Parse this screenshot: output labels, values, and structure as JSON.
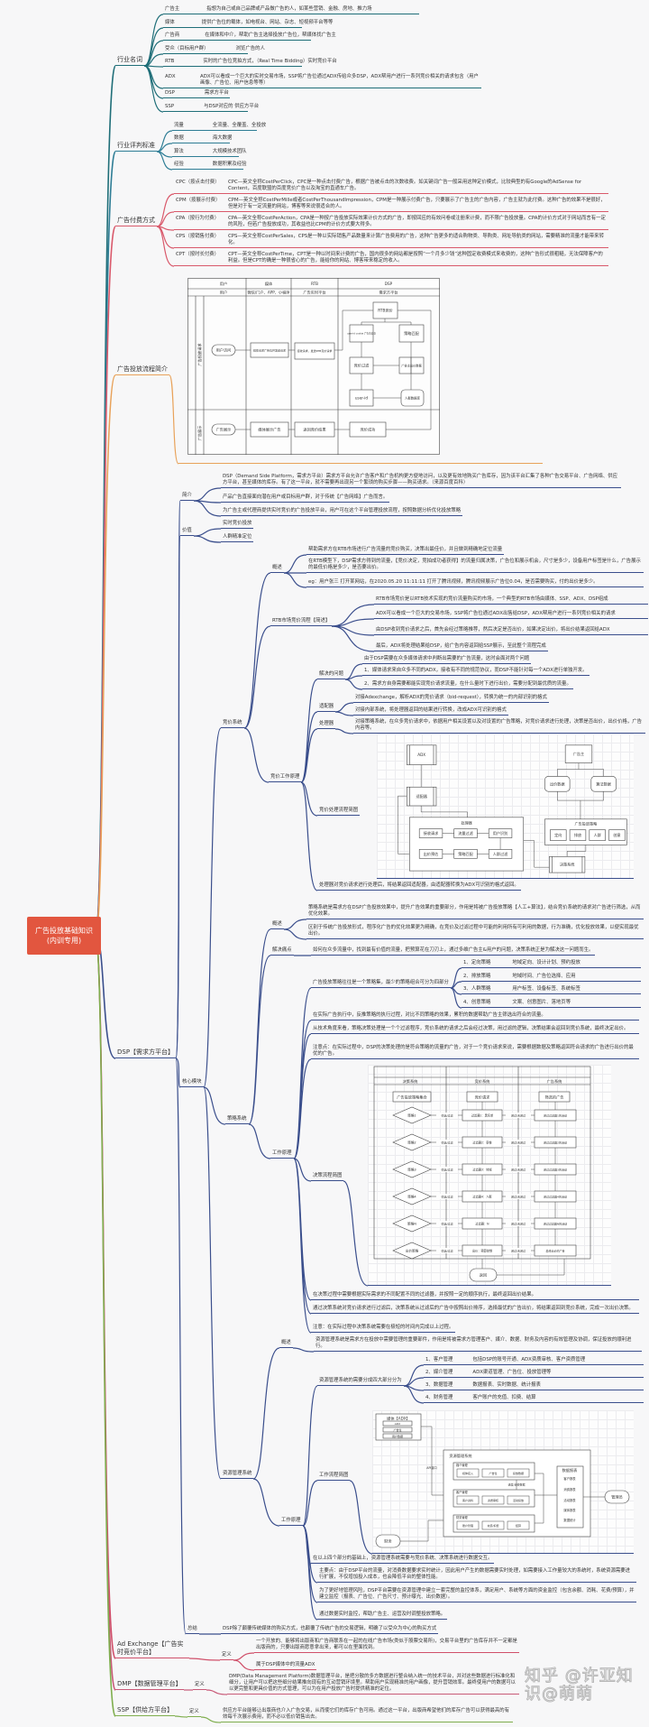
{
  "center": "广告投放基础知识\n(内训专用)",
  "colors": {
    "center": "#e2563f",
    "terms": "#1f6e78",
    "standards": "#2e7d95",
    "pay": "#d9596b",
    "flow": "#e8a25a",
    "dsp": "#3a4e8c",
    "adx": "#d0506a",
    "dmp": "#c85a78",
    "ssp": "#7fae4e"
  },
  "terms": {
    "label": "行业名词",
    "items": [
      {
        "k": "广告主",
        "v": "指想为自己或自己品牌或产品做广告的人，如某些营销、金融、房地、推力场"
      },
      {
        "k": "媒体",
        "v": "提供广告位的载体，如电视台、网站、杂志、短视频平台等等"
      },
      {
        "k": "广告商",
        "v": "在媒体和中介，帮助广告主选择投放广告位，帮媒体找广告主"
      },
      {
        "k": "受众（目标用户群）",
        "v": "浏览广告的人"
      },
      {
        "k": "RTB",
        "v": "实时的广告位竞拍方式，（Real Time Bidding）实时竞价平台"
      },
      {
        "k": "ADX",
        "v": "ADX可以看成一个巨大的实时交易市场，SSP将广告位通过ADX传给众多DSP，ADX帮用户进行一系列竞价相关的请求包含（用户画像、广告位、用户信息等等）"
      },
      {
        "k": "DSP",
        "v": "需求方平台"
      },
      {
        "k": "SSP",
        "v": "与DSP对应的 供应方平台"
      }
    ]
  },
  "standards": {
    "label": "行业评判标准",
    "items": [
      {
        "k": "流量",
        "v": "全流量、全覆盖、全投放"
      },
      {
        "k": "数据",
        "v": "海大数据"
      },
      {
        "k": "算法",
        "v": "大规模技术团队"
      },
      {
        "k": "经验",
        "v": "数据积累及经验"
      }
    ]
  },
  "pay": {
    "label": "广告付费方式",
    "items": [
      {
        "k": "CPC（按点击付费）",
        "v": "CPC—英文全称CostPerClick，CPC是一种点击付费广告，根据广告被点击的次数收费。如关键词广告一般采用这种定价模式，比较典型的有Google的AdSense for Content，百度联盟的百度竞价广告以及淘宝的直通车广告。"
      },
      {
        "k": "CPM（按展示付费）",
        "v": "CPM—英文全称CostPerMille或者CostPerThousandImpression，CPM是一种展示付费广告，只要展示了广告主的广告内容，广告主就为此付费。这种广告的效果不是很好，但是对于有一定流量的网站，博客等来说很适合的人。"
      },
      {
        "k": "CPA（按行为付费）",
        "v": "CPA—英文全称CostPerAction，CPA是一种按广告投放实际效果计价方式的广告，即按回应的有效问卷或注册来计费，而不限广告投放量。CPA的计价方式对于网站而言有一定的风险，但若广告投放成功，其收益也比CPM的计价方式要大得多。"
      },
      {
        "k": "CPS（按销售付费）",
        "v": "CPS—英文全称CostPerSales，CPS是一种以实际销售产品数量来计算广告费用的广告，这种广告更多的适合购物类、导购类、网址导航类的网站，需要精准的流量才能带来转化。"
      },
      {
        "k": "CPT（按时长付费）",
        "v": "CPT—英文全称CostPerTime，CPT是一种以时间来计费的广告，国内很多的网站都是按照“一个月多少钱”这种固定收费模式来收费的，这种广告形式很粗糙，无法保障客户的利益。但是CPT的确是一种很省心的广告，能给你的网站、博客带来稳定的收入。"
      }
    ]
  },
  "flow": {
    "label": "广告投放流程简介",
    "headers": [
      "用户",
      "媒体",
      "RTB",
      "DSP"
    ],
    "subheaders": [
      "用户",
      "微信/门户、APP、小程序",
      "广告实时平台",
      "需求方平台"
    ],
    "lanes": [
      "广告投放请求",
      "广告展示"
    ],
    "boxes": {
      "user": "用户访问",
      "media": "媒体请求广告位并发送请求",
      "rtb": "接收请求，发送RTB竞价请求",
      "bid": "RTB竞价",
      "info": "user-id cookie 广告位信息",
      "match": "策略匹配",
      "filter": "竞价过滤",
      "price": "广告主出价数据",
      "uid": "user-id",
      "db": "人群数据库",
      "show": "广告展示",
      "mshow": "媒体展示广告",
      "result": "返回竞价结果",
      "win": "竞价成功"
    }
  },
  "dsp": {
    "label": "DSP【需求方平台】",
    "intro": {
      "label": "简介",
      "items": [
        "DSP（Demand Side Platform，需求方平台）需求方平台允许广告客户和广告机构更方便地访问，以及更有效地购买广告库存，因为该平台汇集了各种广告交易平台、广告网络、供应方平台，甚至媒体的库存。有了这一平台，就不需要再出现另一个繁琐的购买步骤——购买请求。（来源百度百科）",
        "产品广告直接面向潜在用户或目标用户群，对于传统【广告网络】广告而言。",
        "为广告主或代理商提供实时竞价的广告投放平台，用户可在这个平台管理投放流程，按照数据分析优化投放策略"
      ]
    },
    "value": {
      "label": "价值",
      "items": [
        "实时竞价投放",
        "人群精准定位"
      ]
    },
    "core": {
      "label": "核心模块",
      "bidding": {
        "label": "竞价系统",
        "overview": {
          "label": "概述",
          "items": [
            "帮助需求方在RTB市场进行广告流量的竞价购买，决策出最佳价，并且做到精确地定位流量",
            "在RTB模型下，DSP需求方得到的流量，【竞价决定，竞拍成功者获得】的流量归属决策，广告位和展示机会，尺寸是多少，设备用户标签是什么，广告展示的最低价格是多少，是否要出价。",
            "eg：用户张三 打开某网站，在2020.05.20 11:11:11 打开了腾讯视频，腾讯视频展示广告位0.04，是否需要购买，付的出价是多少。"
          ]
        },
        "rtb": {
          "label": "RTB市场竞价流程【简述】",
          "items": [
            "RTB市场竞价是以RTB技术实现的竞价流量购买的市场，一个典型的RTB市场由媒体、SSP、ADX、DSP组成",
            "ADX可以看成一个巨大的交易市场，SSP将广告位通过ADX出售给DSP，ADX帮用户进行一系列竞价相关的请求",
            "由DSP收到竞价请求之后，首先会经过策略推荐，然后决定是否出价，如果决定出价，将出价结果返回给ADX",
            "最后，ADX将处理结果给DSP，给广告内容返回给SSP展示，至此整个流程完成"
          ]
        },
        "principle": {
          "label": "竞价工作原理",
          "problem": {
            "label": "解决的问题",
            "items": [
              "由于DSP需要在众多媒体请求中判断出需要的广告流量，这时会面对两个问题",
              "1、媒体请求来自众多不同的ADX，接收有不同的规范协议，而DSP不能针对每一个ADX进行单独开发。",
              "2、需求方自身需要都能实现竞价请求流量，在什么量时下进行出价，需要分配到最优质的流量。"
            ]
          },
          "adapter": {
            "label": "适配器",
            "items": [
              "对接Adexchange，解析ADX的竞价请求（bid-request），转换为统一的内部识别的格式",
              "对接内部系统，将处理器返回的结果进行转换，改成ADX可识别的格式"
            ]
          },
          "processor": {
            "label": "处理器",
            "items": [
              "对接策略系统，在众多竞价请求中，依据用户相关设置以及对设置的广告策略，对竞价请求进行处理，决策是否出价，出价价格，广告内容等。"
            ]
          },
          "diagram": {
            "label": "竞价处理流程简图",
            "adx": "ADX",
            "adapter": "适配器",
            "processor": "处理器",
            "steps": [
              "接收请求",
              "流量过滤",
              "用户识别",
              "人群过滤",
              "策略匹配",
              "出价预估"
            ],
            "advertiser": "广告主",
            "db1": "出价数据",
            "db2": "算法数据",
            "strategy": "广告投放策略",
            "strategies": [
              "定向",
              "排放",
              "人群",
              "创意"
            ],
            "decision": "决策系统"
          },
          "note": "处理器对竞价请求进行处理后，将结果返回适配器，由适配器转换为ADX可识别的格式返回。"
        }
      },
      "strategy": {
        "label": "策略系统",
        "overview": {
          "label": "概述",
          "items": [
            "策略系统是需求方在DSP广告投放效果中，提升广告效果的重要部分，作用是将被广告投放策略【人工+算法】，结合竞价系统的请求对广告进行筛选，从而优化效果。",
            "区别于传统广告投放形式，程序化广告的优化效果更为精确，在竞价及过滤过程中可能的利用所有可利用的数据，行为准确，优化投放效果，以便实现最优出价。"
          ]
        },
        "pain": {
          "label": "解决痛点",
          "text": "如何在众多流量中，找到最有价值的流量，把预算花在刀刃上，通过多维广告主&用户的问题，决策系统正是为解决这一问题而生。"
        },
        "work": {
          "label": "工作原理",
          "set": {
            "label": "广告投放策略往往是一个策略集，最少的策略组合可分为四部分",
            "items": [
              {
                "k": "1、定向策略",
                "v": "地域定向、设计计划、预约投放"
              },
              {
                "k": "2、排放策略",
                "v": "地域时间、广告位选择、应用"
              },
              {
                "k": "3、人群策略",
                "v": "用户标签、设备标签、系统标签"
              },
              {
                "k": "4、创意策略",
                "v": "文案、创意图片、落地页等"
              }
            ]
          },
          "items": [
            "在实际广告执行中，反推策略的执行过程，对比不同策略的效果，累积的数据帮助广告主筛选出符合的流量。",
            "从技术角度来看，策略决策处理是一个个过滤程序，竞价系统的请求之后会经过决策，用过滤的逻辑，决策结果会返回到竞价系统，最终决定出价。",
            "注意点：在实际过程中，DSP的决策处理的是符合策略的流量的广告，对于一个竞价请求来说，需要根据数据及策略返回符合请求的广告进行出价的最优的广告。"
          ],
          "diagram": {
            "label": "决策流程简图",
            "cols": [
              "决策系统",
              "竞价系统",
              "广告系统"
            ],
            "top": [
              "广告投放策略集合",
              "竞价请求",
              "筛选的广告"
            ],
            "strategies": [
              "策略1",
              "策略2",
              "策略3",
              "策略4",
              "策略N",
              "出价策略"
            ],
            "filters": [
              "过滤器1：黑名单",
              "过滤器2：审核",
              "过滤器3：地域",
              "过滤器4：人群",
              "过滤器：N",
              "出价：预算控制"
            ],
            "ads": [
              "通过过滤器1的活动",
              "通过过滤器2的活动",
              "通过过滤器3的活动",
              "通过过滤器4的活动",
              "通过过滤器N的活动",
              "最终出价的广告"
            ],
            "edge_left": "筛选/过滤",
            "edge_right": "通过/未通过",
            "end": "返回"
          },
          "after": [
            "在决策过程中需要根据实际需求的不同配置不同的过滤器，并按照一定的顺序执行，最终返回出价结果。",
            "通过决策系统对竞价请求进行过滤后，决策系统从过滤后的广告中按照出价排序，选择最优的广告出价，将结果返回到竞价系统，完成一次出价决策。",
            "注意：在实际过程中决策系统需要在极短的时间内完成以上过程。"
          ]
        }
      },
      "resource": {
        "label": "资源管理系统",
        "overview": {
          "label": "概述",
          "text": "资源管理系统是需求方在投放中需要管理的重要部件，作用是将被需求方管理客户、媒介、数据、财务及内容的有效管理及协调，保证投放的顺利进行。"
        },
        "work": {
          "label": "工作原理",
          "parts": {
            "label": "资源管理系统的需要分成四大部分分为",
            "items": [
              {
                "k": "1、客户管理",
                "v": "包括DSP的账号开通、ADX资质审核、客户资质管理"
              },
              {
                "k": "2、媒介管理",
                "v": "ADX渠道管理、广告位、投放管理等"
              },
              {
                "k": "3、数据管理",
                "v": "数据报表、实时数据、统计报表"
              },
              {
                "k": "4、财务管理",
                "v": "客户账户的充值、扣费、结算"
              }
            ]
          },
          "diagram": {
            "label": "工作流程简图",
            "media": "媒体【ADX】",
            "media_items": [
              "ADX",
              "广告位",
              "用户数据"
            ],
            "api": "API接口",
            "system": "资源管理系统",
            "groups": [
              {
                "name": "媒介管理",
                "items": [
                  "媒体接入",
                  "广告位",
                  "投放数据"
                ]
              },
              {
                "name": "客户管理",
                "items": [
                  "客户资料",
                  "资质审核",
                  "活动投放"
                ]
              },
              {
                "name": "财务管理",
                "items": [
                  "账户管理",
                  "充值/扣费",
                  "结算"
                ]
              }
            ],
            "mid": "进度/消费数据",
            "reports": "数据报表",
            "report_items": [
              "客户报表",
              "消费报表",
              "活动报表",
              "媒体报表",
              "数据统计"
            ],
            "admin": "管理员",
            "finance": "财务"
          },
          "items": [
            "在以上四个部分的基础上，资源管理系统需要与竞价系统、决策系统进行数据交互。",
            "主要点：由于DSP平台的流量，对消费数据要求实时统计，因此用户产生的数据需要实时处理，如需要接入工作量较大的系统时，系统资源需要进行扩展，不仅增加投入成本，也会降低平台的整体性能。",
            "为了更好地管理风险，DSP平台需要在资源管理中建立一套完整的监控体系，满足用户、系统等方面的资金监控（包含余额、消耗、花费/预算），并建立监控（报表、广告位、广告尺寸、预计曝光、出价数据）。",
            "通过数据实时监控，帮助广告主、运营及时调整投放策略。"
          ]
        }
      }
    },
    "summary": {
      "label": "总结",
      "text": "DSP除了颠覆传统媒体的购买方式，也颠覆了传统广告的交易逻辑，明确了以受众为中心的购买方式"
    }
  },
  "adx": {
    "label": "Ad Exchange【广告实时竞价平台】",
    "def": "定义",
    "items": [
      "一个开放的、能够将出版商和广告商联系在一起的在线广告市场(类似于股票交易所)，交易平台里的广告库存并不一定都是出版商的，只要出版商愿意拿出来，都可以在里面找到。",
      "属于DSP媒体中的流量ADX"
    ]
  },
  "dmp": {
    "label": "DMP【数据管理平台】",
    "def": "定义",
    "text": "DMP(Data Management Platform)数据管理平台，是把分散的多方数据进行整合纳入统一的技术平台，并对这些数据进行标准化和细分，让用户可以把这些细分结果推向现有的互动营销环境里。帮助用户实现精准的用户画像，提升营销效率。最终使用户的数据可以以更完整和更具价值的方式管理，可以为在用户投放广告时提供精准的定位。"
  },
  "ssp": {
    "label": "SSP【供给方平台】",
    "def": "定义",
    "text": "供应方平台能够让出版商也介入广告交易，从而使它们的库存广告可用。通过这一平台，出版商希望他们的库存广告可以获得最高的有效每千次展示费用，而不必以低价销售出去。"
  },
  "watermark": "知乎 @许亚知识@萌萌"
}
